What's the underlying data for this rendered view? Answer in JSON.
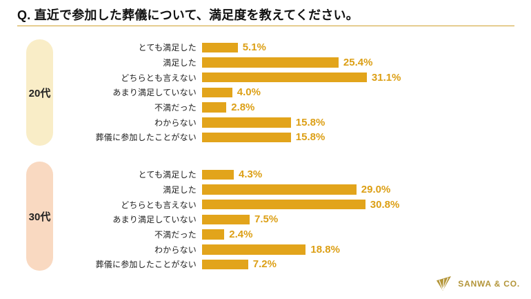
{
  "title": "Q. 直近で参加した葬儀について、満足度を教えてください。",
  "colors": {
    "bar": "#e2a41b",
    "value_text": "#dc9f15",
    "divider": "#cfa02f",
    "pill_20s": "#f9edc7",
    "pill_30s": "#f9d9c1",
    "logo": "#b39539",
    "title_text": "#111111",
    "label_text": "#1c1c1c"
  },
  "chart_data": [
    {
      "type": "bar",
      "orientation": "horizontal",
      "group_label": "20代",
      "pill_color": "#f9edc7",
      "bar_color": "#e2a41b",
      "categories": [
        "とても満足した",
        "満足した",
        "どちらとも言えない",
        "あまり満足していない",
        "不満だった",
        "わからない",
        "葬儀に参加したことがない"
      ],
      "values": [
        5.1,
        25.4,
        31.1,
        4.0,
        2.8,
        15.8,
        15.8
      ],
      "value_labels": [
        "5.1%",
        "25.4%",
        "31.1%",
        "4.0%",
        "2.8%",
        "15.8%",
        "15.8%"
      ],
      "xlim": [
        0,
        35
      ],
      "grid": false,
      "legend": false
    },
    {
      "type": "bar",
      "orientation": "horizontal",
      "group_label": "30代",
      "pill_color": "#f9d9c1",
      "bar_color": "#e2a41b",
      "categories": [
        "とても満足した",
        "満足した",
        "どちらとも言えない",
        "あまり満足していない",
        "不満だった",
        "わからない",
        "葬儀に参加したことがない"
      ],
      "values": [
        4.3,
        29.0,
        30.8,
        7.5,
        2.4,
        18.8,
        7.2
      ],
      "value_labels": [
        "4.3%",
        "29.0%",
        "30.8%",
        "7.5%",
        "2.4%",
        "18.8%",
        "7.2%"
      ],
      "xlim": [
        0,
        35
      ],
      "grid": false,
      "legend": false
    }
  ],
  "footer": {
    "logo_text": "SANWA & CO."
  }
}
